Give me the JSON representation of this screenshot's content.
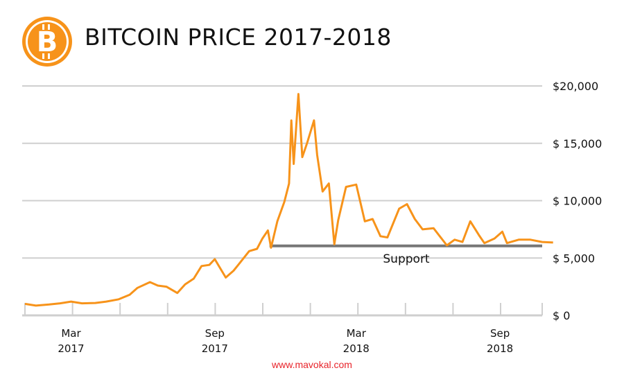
{
  "chart_data": {
    "type": "line",
    "title": "BITCOIN PRICE 2017-2018",
    "source": "www.mavokal.com",
    "ylim": [
      0,
      20000
    ],
    "yticks": [
      0,
      5000,
      10000,
      15000,
      20000
    ],
    "ytick_labels": [
      "$ 0",
      "$ 5,000",
      "$ 10,000",
      "$ 15,000",
      "$20,000"
    ],
    "xlim": [
      "2017-01-01",
      "2018-11-10"
    ],
    "xtick_labels": [
      {
        "date": "2017-03-01",
        "month": "Mar",
        "year": "2017"
      },
      {
        "date": "2017-09-01",
        "month": "Sep",
        "year": "2017"
      },
      {
        "date": "2018-03-01",
        "month": "Mar",
        "year": "2018"
      },
      {
        "date": "2018-09-01",
        "month": "Sep",
        "year": "2018"
      }
    ],
    "grid": true,
    "line_color": "#f7931a",
    "support": {
      "label": "Support",
      "value": 6000,
      "from": "2017-11-10",
      "to": "2018-11-10",
      "color": "#777777"
    },
    "series": [
      {
        "points": [
          [
            "2017-01-01",
            1000
          ],
          [
            "2017-01-15",
            850
          ],
          [
            "2017-02-01",
            950
          ],
          [
            "2017-02-15",
            1050
          ],
          [
            "2017-03-01",
            1200
          ],
          [
            "2017-03-15",
            1050
          ],
          [
            "2017-04-01",
            1080
          ],
          [
            "2017-04-15",
            1200
          ],
          [
            "2017-05-01",
            1400
          ],
          [
            "2017-05-15",
            1800
          ],
          [
            "2017-05-25",
            2400
          ],
          [
            "2017-06-10",
            2900
          ],
          [
            "2017-06-20",
            2600
          ],
          [
            "2017-07-01",
            2500
          ],
          [
            "2017-07-15",
            1950
          ],
          [
            "2017-07-25",
            2700
          ],
          [
            "2017-08-05",
            3200
          ],
          [
            "2017-08-15",
            4300
          ],
          [
            "2017-08-25",
            4400
          ],
          [
            "2017-09-01",
            4900
          ],
          [
            "2017-09-15",
            3300
          ],
          [
            "2017-09-25",
            3900
          ],
          [
            "2017-10-01",
            4400
          ],
          [
            "2017-10-15",
            5600
          ],
          [
            "2017-10-25",
            5800
          ],
          [
            "2017-11-01",
            6700
          ],
          [
            "2017-11-08",
            7400
          ],
          [
            "2017-11-12",
            5900
          ],
          [
            "2017-11-20",
            8200
          ],
          [
            "2017-11-29",
            9900
          ],
          [
            "2017-12-05",
            11500
          ],
          [
            "2017-12-08",
            17000
          ],
          [
            "2017-12-11",
            13200
          ],
          [
            "2017-12-17",
            19300
          ],
          [
            "2017-12-22",
            13800
          ],
          [
            "2017-12-28",
            15000
          ],
          [
            "2018-01-06",
            17000
          ],
          [
            "2018-01-10",
            14000
          ],
          [
            "2018-01-17",
            10800
          ],
          [
            "2018-01-25",
            11500
          ],
          [
            "2018-02-01",
            6200
          ],
          [
            "2018-02-06",
            8300
          ],
          [
            "2018-02-16",
            11200
          ],
          [
            "2018-03-01",
            11400
          ],
          [
            "2018-03-12",
            8200
          ],
          [
            "2018-03-22",
            8400
          ],
          [
            "2018-04-01",
            6900
          ],
          [
            "2018-04-10",
            6800
          ],
          [
            "2018-04-25",
            9300
          ],
          [
            "2018-05-05",
            9700
          ],
          [
            "2018-05-15",
            8400
          ],
          [
            "2018-05-25",
            7500
          ],
          [
            "2018-06-08",
            7600
          ],
          [
            "2018-06-25",
            6100
          ],
          [
            "2018-07-05",
            6600
          ],
          [
            "2018-07-15",
            6400
          ],
          [
            "2018-07-25",
            8200
          ],
          [
            "2018-08-05",
            7000
          ],
          [
            "2018-08-12",
            6300
          ],
          [
            "2018-08-25",
            6700
          ],
          [
            "2018-09-04",
            7300
          ],
          [
            "2018-09-10",
            6300
          ],
          [
            "2018-09-25",
            6600
          ],
          [
            "2018-10-10",
            6600
          ],
          [
            "2018-10-25",
            6400
          ],
          [
            "2018-11-08",
            6350
          ]
        ]
      }
    ]
  }
}
